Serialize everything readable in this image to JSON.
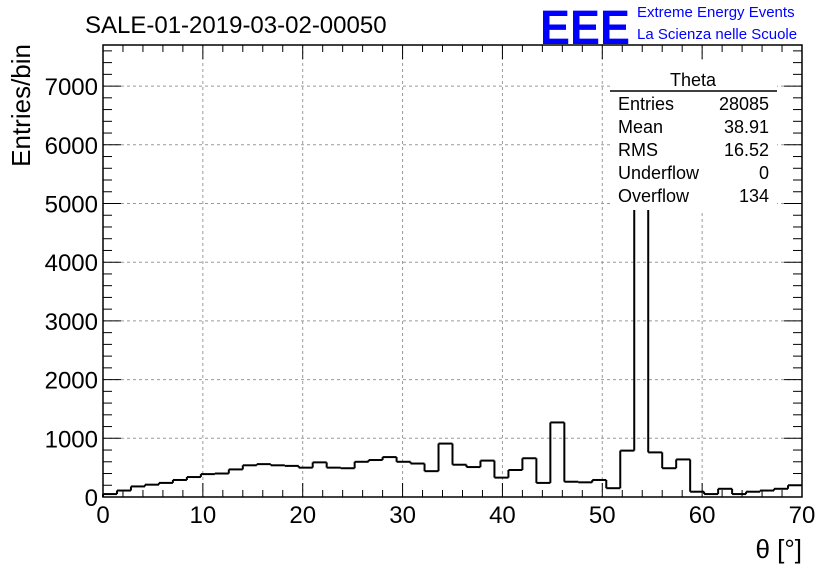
{
  "header": {
    "run_title": "SALE-01-2019-03-02-00050",
    "logo_text": "EEE",
    "logo_line1": "Extreme Energy Events",
    "logo_line2": "La Scienza nelle Scuole",
    "logo_color": "#0000ff"
  },
  "stats_box": {
    "title": "Theta",
    "rows": [
      {
        "label": "Entries",
        "value": "28085"
      },
      {
        "label": "Mean",
        "value": "38.91"
      },
      {
        "label": "RMS",
        "value": "16.52"
      },
      {
        "label": "Underflow",
        "value": "0"
      },
      {
        "label": "Overflow",
        "value": "134"
      }
    ]
  },
  "chart_data": {
    "type": "bar",
    "style": "step-histogram",
    "title": "SALE-01-2019-03-02-00050",
    "xlabel": "θ [°]",
    "ylabel": "Entries/bin",
    "xlim": [
      0,
      70
    ],
    "ylim": [
      0,
      7700
    ],
    "x_ticks": [
      0,
      10,
      20,
      30,
      40,
      50,
      60,
      70
    ],
    "y_ticks": [
      0,
      1000,
      2000,
      3000,
      4000,
      5000,
      6000,
      7000
    ],
    "grid": true,
    "bin_width": 1.4,
    "bin_low_edges": [
      0,
      1.4,
      2.8,
      4.2,
      5.6,
      7.0,
      8.4,
      9.8,
      11.2,
      12.6,
      14.0,
      15.4,
      16.8,
      18.2,
      19.6,
      21.0,
      22.4,
      23.8,
      25.2,
      26.6,
      28.0,
      29.4,
      30.8,
      32.2,
      33.6,
      35.0,
      36.4,
      37.8,
      39.2,
      40.6,
      42.0,
      43.4,
      44.8,
      46.2,
      47.6,
      49.0,
      50.4,
      51.8,
      53.2,
      54.6,
      56.0,
      57.4,
      58.8,
      60.2,
      61.6,
      63.0,
      64.4,
      65.8,
      67.2,
      68.6
    ],
    "values": [
      50,
      110,
      180,
      210,
      240,
      290,
      340,
      390,
      400,
      470,
      540,
      560,
      540,
      530,
      500,
      590,
      500,
      490,
      600,
      630,
      680,
      600,
      570,
      440,
      910,
      550,
      510,
      620,
      330,
      460,
      660,
      240,
      1270,
      260,
      250,
      290,
      150,
      790,
      7380,
      760,
      490,
      640,
      90,
      50,
      140,
      50,
      90,
      110,
      140,
      200
    ]
  }
}
